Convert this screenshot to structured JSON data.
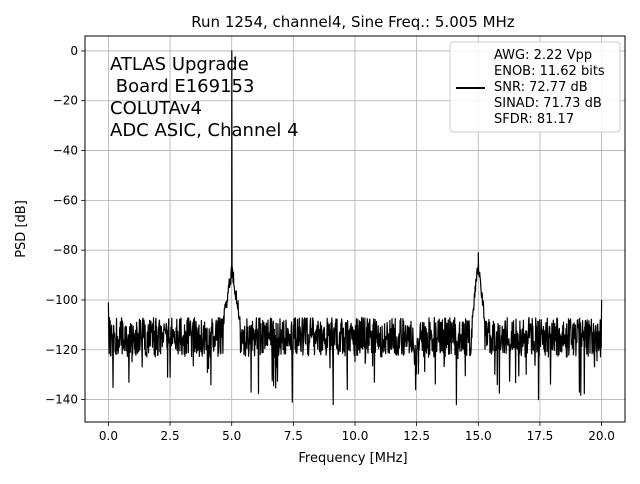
{
  "chart_data": {
    "type": "line",
    "title": "Run 1254, channel4, Sine Freq.: 5.005 MHz",
    "xlabel": "Frequency [MHz]",
    "ylabel": "PSD [dB]",
    "xlim": [
      -0.95,
      20.95
    ],
    "ylim": [
      -149,
      6
    ],
    "xticks": [
      0.0,
      2.5,
      5.0,
      7.5,
      10.0,
      12.5,
      15.0,
      17.5,
      20.0
    ],
    "xtick_labels": [
      "0.0",
      "2.5",
      "5.0",
      "7.5",
      "10.0",
      "12.5",
      "15.0",
      "17.5",
      "20.0"
    ],
    "yticks": [
      0,
      -20,
      -40,
      -60,
      -80,
      -100,
      -120,
      -140
    ],
    "ytick_labels": [
      "0",
      "−20",
      "−40",
      "−60",
      "−80",
      "−100",
      "−120",
      "−140"
    ],
    "grid": true,
    "annotation": [
      "ATLAS Upgrade",
      " Board E169153",
      "COLUTAv4",
      "ADC ASIC, Channel 4"
    ],
    "legend": {
      "placement": "top-right",
      "entries": [
        "AWG: 2.22 Vpp",
        "ENOB: 11.62 bits",
        "SNR: 72.77 dB",
        "SINAD: 71.73 dB",
        "SFDR: 81.17"
      ]
    },
    "line_color": "#000000",
    "series": [
      {
        "values_description_free": true,
        "x_range": [
          0,
          20
        ],
        "noise_floor_db": -115,
        "noise_spread_db": 8,
        "dips_db": [
          -133,
          -131,
          -134,
          -137,
          -141,
          -142,
          -133,
          -136,
          -142,
          -134,
          -140,
          -137
        ],
        "peaks": [
          {
            "x": 5.005,
            "y": 0
          },
          {
            "x": 15.0,
            "y": -81
          }
        ],
        "edge_values": [
          {
            "x": 0.0,
            "y": -101
          },
          {
            "x": 20.0,
            "y": -100
          }
        ]
      }
    ]
  }
}
